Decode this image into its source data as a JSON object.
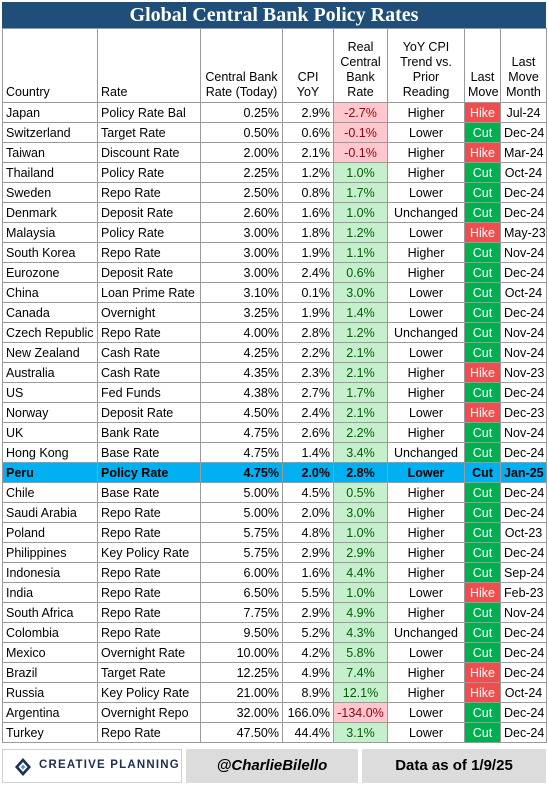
{
  "title": "Global Central Bank Policy Rates",
  "colors": {
    "title_bg": "#1f4e79",
    "highlight_row": "#00b0f0",
    "positive_real_rate": "#c6efce",
    "negative_real_rate": "#ffc7ce",
    "negative_text": "#9c0006",
    "positive_text": "#006100",
    "hike": "#f04e4e",
    "cut": "#00b050"
  },
  "columns": [
    "Country",
    "Rate",
    "Central Bank Rate (Today)",
    "CPI YoY",
    "Real Central Bank Rate",
    "YoY CPI Trend vs. Prior Reading",
    "Last Move",
    "Last Move Month"
  ],
  "chart_data": {
    "type": "table",
    "title": "Global Central Bank Policy Rates",
    "highlighted_country": "Peru",
    "rows": [
      {
        "country": "Japan",
        "rate": "Policy Rate Bal",
        "cb_rate": "0.25%",
        "cpi": "2.9%",
        "real": "-2.7%",
        "trend": "Higher",
        "move": "Hike",
        "month": "Jul-24"
      },
      {
        "country": "Switzerland",
        "rate": "Target Rate",
        "cb_rate": "0.50%",
        "cpi": "0.6%",
        "real": "-0.1%",
        "trend": "Lower",
        "move": "Cut",
        "month": "Dec-24"
      },
      {
        "country": "Taiwan",
        "rate": "Discount Rate",
        "cb_rate": "2.00%",
        "cpi": "2.1%",
        "real": "-0.1%",
        "trend": "Higher",
        "move": "Hike",
        "month": "Mar-24"
      },
      {
        "country": "Thailand",
        "rate": "Policy Rate",
        "cb_rate": "2.25%",
        "cpi": "1.2%",
        "real": "1.0%",
        "trend": "Higher",
        "move": "Cut",
        "month": "Oct-24"
      },
      {
        "country": "Sweden",
        "rate": "Repo Rate",
        "cb_rate": "2.50%",
        "cpi": "0.8%",
        "real": "1.7%",
        "trend": "Lower",
        "move": "Cut",
        "month": "Dec-24"
      },
      {
        "country": "Denmark",
        "rate": "Deposit Rate",
        "cb_rate": "2.60%",
        "cpi": "1.6%",
        "real": "1.0%",
        "trend": "Unchanged",
        "move": "Cut",
        "month": "Dec-24"
      },
      {
        "country": "Malaysia",
        "rate": "Policy Rate",
        "cb_rate": "3.00%",
        "cpi": "1.8%",
        "real": "1.2%",
        "trend": "Lower",
        "move": "Hike",
        "month": "May-23"
      },
      {
        "country": "South Korea",
        "rate": "Repo Rate",
        "cb_rate": "3.00%",
        "cpi": "1.9%",
        "real": "1.1%",
        "trend": "Higher",
        "move": "Cut",
        "month": "Nov-24"
      },
      {
        "country": "Eurozone",
        "rate": "Deposit Rate",
        "cb_rate": "3.00%",
        "cpi": "2.4%",
        "real": "0.6%",
        "trend": "Higher",
        "move": "Cut",
        "month": "Dec-24"
      },
      {
        "country": "China",
        "rate": "Loan Prime Rate",
        "cb_rate": "3.10%",
        "cpi": "0.1%",
        "real": "3.0%",
        "trend": "Lower",
        "move": "Cut",
        "month": "Oct-24"
      },
      {
        "country": "Canada",
        "rate": "Overnight",
        "cb_rate": "3.25%",
        "cpi": "1.9%",
        "real": "1.4%",
        "trend": "Lower",
        "move": "Cut",
        "month": "Dec-24"
      },
      {
        "country": "Czech Republic",
        "rate": "Repo Rate",
        "cb_rate": "4.00%",
        "cpi": "2.8%",
        "real": "1.2%",
        "trend": "Unchanged",
        "move": "Cut",
        "month": "Nov-24"
      },
      {
        "country": "New Zealand",
        "rate": "Cash Rate",
        "cb_rate": "4.25%",
        "cpi": "2.2%",
        "real": "2.1%",
        "trend": "Lower",
        "move": "Cut",
        "month": "Nov-24"
      },
      {
        "country": "Australia",
        "rate": "Cash Rate",
        "cb_rate": "4.35%",
        "cpi": "2.3%",
        "real": "2.1%",
        "trend": "Higher",
        "move": "Hike",
        "month": "Nov-23"
      },
      {
        "country": "US",
        "rate": "Fed Funds",
        "cb_rate": "4.38%",
        "cpi": "2.7%",
        "real": "1.7%",
        "trend": "Higher",
        "move": "Cut",
        "month": "Dec-24"
      },
      {
        "country": "Norway",
        "rate": "Deposit Rate",
        "cb_rate": "4.50%",
        "cpi": "2.4%",
        "real": "2.1%",
        "trend": "Lower",
        "move": "Hike",
        "month": "Dec-23"
      },
      {
        "country": "UK",
        "rate": "Bank Rate",
        "cb_rate": "4.75%",
        "cpi": "2.6%",
        "real": "2.2%",
        "trend": "Higher",
        "move": "Cut",
        "month": "Nov-24"
      },
      {
        "country": "Hong Kong",
        "rate": "Base Rate",
        "cb_rate": "4.75%",
        "cpi": "1.4%",
        "real": "3.4%",
        "trend": "Unchanged",
        "move": "Cut",
        "month": "Dec-24"
      },
      {
        "country": "Peru",
        "rate": "Policy Rate",
        "cb_rate": "4.75%",
        "cpi": "2.0%",
        "real": "2.8%",
        "trend": "Lower",
        "move": "Cut",
        "month": "Jan-25"
      },
      {
        "country": "Chile",
        "rate": "Base Rate",
        "cb_rate": "5.00%",
        "cpi": "4.5%",
        "real": "0.5%",
        "trend": "Higher",
        "move": "Cut",
        "month": "Dec-24"
      },
      {
        "country": "Saudi Arabia",
        "rate": "Repo Rate",
        "cb_rate": "5.00%",
        "cpi": "2.0%",
        "real": "3.0%",
        "trend": "Higher",
        "move": "Cut",
        "month": "Dec-24"
      },
      {
        "country": "Poland",
        "rate": "Repo Rate",
        "cb_rate": "5.75%",
        "cpi": "4.8%",
        "real": "1.0%",
        "trend": "Higher",
        "move": "Cut",
        "month": "Oct-23"
      },
      {
        "country": "Philippines",
        "rate": "Key Policy Rate",
        "cb_rate": "5.75%",
        "cpi": "2.9%",
        "real": "2.9%",
        "trend": "Higher",
        "move": "Cut",
        "month": "Dec-24"
      },
      {
        "country": "Indonesia",
        "rate": "Repo Rate",
        "cb_rate": "6.00%",
        "cpi": "1.6%",
        "real": "4.4%",
        "trend": "Higher",
        "move": "Cut",
        "month": "Sep-24"
      },
      {
        "country": "India",
        "rate": "Repo Rate",
        "cb_rate": "6.50%",
        "cpi": "5.5%",
        "real": "1.0%",
        "trend": "Lower",
        "move": "Hike",
        "month": "Feb-23"
      },
      {
        "country": "South Africa",
        "rate": "Repo Rate",
        "cb_rate": "7.75%",
        "cpi": "2.9%",
        "real": "4.9%",
        "trend": "Higher",
        "move": "Cut",
        "month": "Nov-24"
      },
      {
        "country": "Colombia",
        "rate": "Repo Rate",
        "cb_rate": "9.50%",
        "cpi": "5.2%",
        "real": "4.3%",
        "trend": "Unchanged",
        "move": "Cut",
        "month": "Dec-24"
      },
      {
        "country": "Mexico",
        "rate": "Overnight Rate",
        "cb_rate": "10.00%",
        "cpi": "4.2%",
        "real": "5.8%",
        "trend": "Lower",
        "move": "Cut",
        "month": "Dec-24"
      },
      {
        "country": "Brazil",
        "rate": "Target Rate",
        "cb_rate": "12.25%",
        "cpi": "4.9%",
        "real": "7.4%",
        "trend": "Higher",
        "move": "Hike",
        "month": "Dec-24"
      },
      {
        "country": "Russia",
        "rate": "Key Policy Rate",
        "cb_rate": "21.00%",
        "cpi": "8.9%",
        "real": "12.1%",
        "trend": "Higher",
        "move": "Hike",
        "month": "Oct-24"
      },
      {
        "country": "Argentina",
        "rate": "Overnight Repo",
        "cb_rate": "32.00%",
        "cpi": "166.0%",
        "real": "-134.0%",
        "trend": "Lower",
        "move": "Cut",
        "month": "Dec-24"
      },
      {
        "country": "Turkey",
        "rate": "Repo Rate",
        "cb_rate": "47.50%",
        "cpi": "44.4%",
        "real": "3.1%",
        "trend": "Lower",
        "move": "Cut",
        "month": "Dec-24"
      }
    ]
  },
  "footer": {
    "logo_text": "CREATIVE PLANNING",
    "logo_icon": "creative-planning-logo-icon",
    "handle": "@CharlieBilello",
    "as_of": "Data as of 1/9/25"
  }
}
